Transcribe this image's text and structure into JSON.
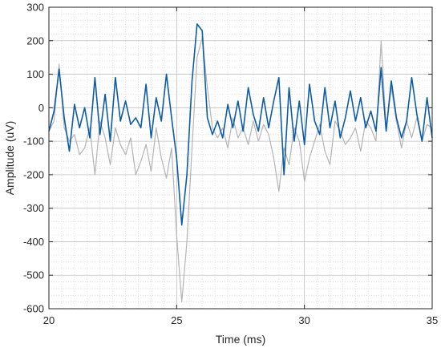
{
  "chart_data": {
    "type": "line",
    "title": "",
    "xlabel": "Time (ms)",
    "ylabel": "Amplitude (uV)",
    "xlim": [
      20,
      35
    ],
    "ylim": [
      -600,
      300
    ],
    "x_ticks": [
      20,
      25,
      30,
      35
    ],
    "y_ticks": [
      -600,
      -500,
      -400,
      -300,
      -200,
      -100,
      0,
      100,
      200,
      300
    ],
    "x_tick_labels": [
      "20",
      "25",
      "30",
      "35"
    ],
    "y_tick_labels": [
      "-600",
      "-500",
      "-400",
      "-300",
      "-200",
      "-100",
      "0",
      "100",
      "200",
      "300"
    ],
    "grid": "major and minor, dotted",
    "legend": "none",
    "series": [
      {
        "color": "#b4b4b4",
        "x": [
          20.0,
          20.2,
          20.4,
          20.6,
          20.8,
          21.0,
          21.2,
          21.4,
          21.6,
          21.8,
          22.0,
          22.2,
          22.4,
          22.6,
          22.8,
          23.0,
          23.2,
          23.4,
          23.6,
          23.8,
          24.0,
          24.2,
          24.4,
          24.6,
          24.8,
          25.0,
          25.2,
          25.4,
          25.6,
          25.8,
          26.0,
          26.2,
          26.4,
          26.6,
          26.8,
          27.0,
          27.2,
          27.4,
          27.6,
          27.8,
          28.0,
          28.2,
          28.4,
          28.6,
          28.8,
          29.0,
          29.2,
          29.4,
          29.6,
          29.8,
          30.0,
          30.2,
          30.4,
          30.6,
          30.8,
          31.0,
          31.2,
          31.4,
          31.6,
          31.8,
          32.0,
          32.2,
          32.4,
          32.6,
          32.8,
          33.0,
          33.2,
          33.4,
          33.6,
          33.8,
          34.0,
          34.2,
          34.4,
          34.6,
          34.8,
          35.0
        ],
        "y": [
          -70,
          -40,
          130,
          -60,
          -100,
          -80,
          -140,
          -120,
          -60,
          -200,
          -40,
          -90,
          -170,
          -60,
          -110,
          -140,
          -90,
          -200,
          -160,
          -110,
          -190,
          -60,
          -150,
          -210,
          -120,
          -380,
          -580,
          -400,
          -120,
          150,
          210,
          60,
          -60,
          -90,
          -60,
          -120,
          -30,
          -90,
          -60,
          -110,
          -40,
          -100,
          -50,
          -80,
          -150,
          -250,
          -120,
          -170,
          -60,
          -100,
          -220,
          -150,
          -100,
          -50,
          -130,
          -170,
          -40,
          -70,
          -110,
          -90,
          -60,
          -130,
          -40,
          -60,
          -100,
          200,
          -60,
          60,
          -40,
          -120,
          -40,
          -90,
          -30,
          -100,
          -50,
          -60
        ]
      },
      {
        "color": "#0c5ca8",
        "x": [
          20.0,
          20.2,
          20.4,
          20.6,
          20.8,
          21.0,
          21.2,
          21.4,
          21.6,
          21.8,
          22.0,
          22.2,
          22.4,
          22.6,
          22.8,
          23.0,
          23.2,
          23.4,
          23.6,
          23.8,
          24.0,
          24.2,
          24.4,
          24.6,
          24.8,
          25.0,
          25.2,
          25.4,
          25.6,
          25.8,
          26.0,
          26.2,
          26.4,
          26.6,
          26.8,
          27.0,
          27.2,
          27.4,
          27.6,
          27.8,
          28.0,
          28.2,
          28.4,
          28.6,
          28.8,
          29.0,
          29.2,
          29.4,
          29.6,
          29.8,
          30.0,
          30.2,
          30.4,
          30.6,
          30.8,
          31.0,
          31.2,
          31.4,
          31.6,
          31.8,
          32.0,
          32.2,
          32.4,
          32.6,
          32.8,
          33.0,
          33.2,
          33.4,
          33.6,
          33.8,
          34.0,
          34.2,
          34.4,
          34.6,
          34.8,
          35.0
        ],
        "y": [
          -70,
          -10,
          115,
          -30,
          -130,
          10,
          -60,
          0,
          -90,
          90,
          -80,
          40,
          -100,
          90,
          -40,
          20,
          -50,
          -30,
          -60,
          70,
          -90,
          30,
          -40,
          100,
          -30,
          -150,
          -350,
          -200,
          80,
          250,
          230,
          -30,
          -80,
          -40,
          -90,
          10,
          -60,
          20,
          -70,
          60,
          -20,
          -70,
          30,
          -60,
          20,
          90,
          -200,
          60,
          -100,
          20,
          -110,
          70,
          -40,
          -80,
          60,
          -60,
          20,
          -90,
          -30,
          50,
          -40,
          30,
          -60,
          -10,
          -70,
          120,
          -70,
          80,
          -30,
          -90,
          -40,
          90,
          -20,
          -100,
          30,
          -90
        ]
      }
    ]
  }
}
